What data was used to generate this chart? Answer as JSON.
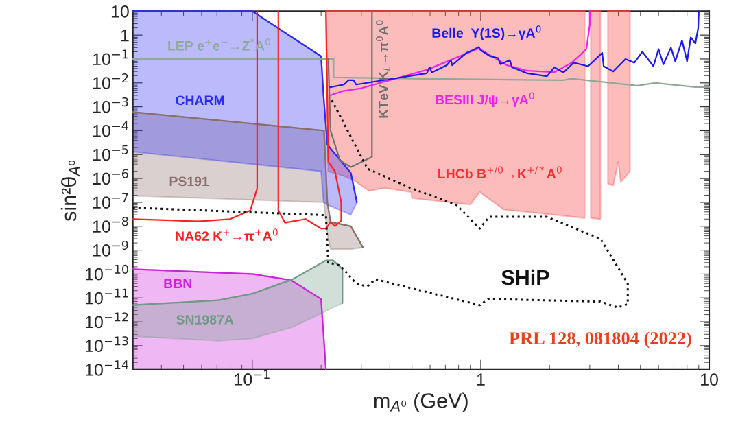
{
  "chart_data": {
    "type": "line",
    "log": "xy",
    "xlabel": "m$_{A⁰}$ (GeV)",
    "ylabel": "sin²θ$_{A⁰}$",
    "xlim": [
      0.03,
      10
    ],
    "ylim": [
      1e-14,
      10
    ],
    "xticks": [
      {
        "value": 0.1,
        "label": "10$^{−1}$"
      },
      1,
      10
    ],
    "yticks": [
      10,
      1,
      {
        "value": 0.1,
        "label": "10$^{−1}$"
      },
      {
        "value": 0.01,
        "label": "10$^{−2}$"
      },
      {
        "value": 0.001,
        "label": "10$^{−3}$"
      },
      {
        "value": 0.0001,
        "label": "10$^{−4}$"
      },
      {
        "value": 1e-05,
        "label": "10$^{−5}$"
      },
      {
        "value": 1e-06,
        "label": "10$^{−6}$"
      },
      {
        "value": 1e-07,
        "label": "10$^{−7}$"
      },
      {
        "value": 1e-08,
        "label": "10$^{−8}$"
      },
      {
        "value": 1e-09,
        "label": "10$^{−9}$"
      },
      {
        "value": 1e-10,
        "label": "10$^{−10}$"
      },
      {
        "value": 1e-11,
        "label": "10$^{−11}$"
      },
      {
        "value": 1e-12,
        "label": "10$^{−12}$"
      },
      {
        "value": 1e-13,
        "label": "10$^{−13}$"
      },
      {
        "value": 1e-14,
        "label": "10$^{−14}$"
      }
    ],
    "series": [
      {
        "name": "LHCb B$^{+/0}$→K$^{+/*}$A$^{0}$",
        "color": "#f53030",
        "x": [
          0.21,
          0.215,
          0.25,
          0.28,
          0.325,
          0.38,
          0.495,
          0.5,
          0.9,
          0.99,
          1.26,
          2.85
        ],
        "values": [
          10,
          10,
          10,
          10,
          10,
          10,
          10,
          10,
          10,
          10,
          10,
          10
        ],
        "upper": [
          10,
          10,
          10,
          10,
          10,
          10,
          10,
          10,
          10,
          10,
          10,
          10
        ],
        "lower": [
          10,
          2e-06,
          1.3e-06,
          8e-07,
          3e-07,
          4e-07,
          2.7e-07,
          1.5e-07,
          8e-08,
          2.7e-07,
          5e-08,
          2.2e-08
        ]
      },
      {
        "color": "#f53030",
        "x": [
          3.03,
          3.34
        ],
        "values": [
          10,
          10
        ],
        "upper": [
          10,
          10
        ],
        "lower": [
          2.2e-08,
          2e-08
        ]
      },
      {
        "color": "#f53030",
        "x": [
          3.6,
          3.8,
          4.0,
          4.1,
          4.5
        ],
        "values": [
          10,
          10,
          10,
          10,
          10
        ],
        "upper": [
          10,
          10,
          10,
          10,
          10
        ],
        "lower": [
          6e-07,
          5e-07,
          5e-06,
          7e-07,
          2e-06
        ]
      },
      {
        "name": "PS191",
        "color": "#8a6e6a",
        "x": [
          0.03,
          0.206,
          0.213,
          0.22,
          0.27,
          0.305
        ],
        "values": [
          0.0006,
          0.0001,
          1e-07,
          1.5e-08,
          1e-08,
          1.3e-09
        ],
        "upper": [
          0.0006,
          0.0001,
          1e-07,
          1.5e-08,
          1e-08,
          1.3e-09
        ],
        "lower": [
          1.9e-07,
          1e-07,
          5e-09,
          1.1e-09,
          1.1e-09,
          1.3e-09
        ]
      },
      {
        "name": "CHARM",
        "color": "#2a2af5",
        "x": [
          0.03,
          0.1,
          0.2,
          0.205,
          0.213,
          0.27,
          0.287
        ],
        "values": [
          10,
          10,
          0.13,
          0.003,
          2.6e-05,
          1.7e-06,
          1e-07
        ],
        "upper": [
          10,
          10,
          0.13,
          0.003,
          2.6e-05,
          1.7e-06,
          1e-07
        ],
        "lower": [
          1.3e-05,
          4e-06,
          2e-06,
          1e-07,
          8e-08,
          3e-08,
          1e-07
        ]
      },
      {
        "name": "BBN",
        "color": "#cc22dd",
        "x": [
          0.03,
          0.1,
          0.148,
          0.2,
          0.21
        ],
        "values": [
          1.6e-10,
          1e-10,
          5.5e-11,
          9e-12,
          1e-14
        ],
        "upper": [
          1.6e-10,
          1e-10,
          5.5e-11,
          9e-12,
          1e-14
        ],
        "lower": [
          1e-14,
          1e-14,
          1e-14,
          1e-14,
          1e-14
        ]
      },
      {
        "name": "SN1987A",
        "color": "#6f9a86",
        "x": [
          0.03,
          0.071,
          0.1,
          0.15,
          0.21,
          0.226,
          0.248,
          0.248
        ],
        "values": [
          5e-12,
          8e-12,
          1.5e-11,
          6e-11,
          3.7e-10,
          3.7e-10,
          1.6e-10,
          6e-12
        ],
        "upper": [
          5e-12,
          8e-12,
          1.5e-11,
          6e-11,
          3.7e-10,
          3.7e-10,
          1.6e-10,
          6e-12
        ],
        "lower": [
          2.5e-13,
          1.6e-13,
          2e-13,
          6e-13,
          2.8e-12,
          4e-12,
          6e-12,
          6e-12
        ]
      },
      {
        "name": "LEP e$^{+}$e$^{−}$→Z$^{*}$A$^{0}$",
        "color": "#8fa89a",
        "x": [
          0.03,
          0.227,
          0.227,
          0.5,
          1,
          2.3,
          2.5,
          4.85,
          5.8,
          8.7,
          10
        ],
        "values": [
          0.1,
          0.1,
          0.017,
          0.015,
          0.014,
          0.013,
          0.015,
          0.0076,
          0.01,
          0.0067,
          0.0067
        ]
      },
      {
        "name": "KTeV K$_{L}$→π$^{0}$A$^{0}$",
        "color": "#707070",
        "x": [
          0.215,
          0.22,
          0.242,
          0.27,
          0.334,
          0.334
        ],
        "values": [
          0.1,
          0.0001,
          5.6e-06,
          3e-06,
          8e-06,
          10
        ]
      },
      {
        "name": "NA62 K$^{+}$→π$^{+}$A$^{0}$",
        "color": "#ff2020",
        "x": [
          0.03,
          0.058,
          0.08,
          0.098,
          0.105,
          0.105
        ],
        "values": [
          2e-08,
          1.6e-08,
          2e-08,
          4.6e-08,
          3.8e-07,
          10
        ]
      },
      {
        "color": "#ff2020",
        "x": [
          0.13,
          0.13,
          0.139,
          0.171,
          0.2,
          0.21,
          0.22,
          0.23,
          0.245,
          0.245,
          0.23,
          0.215,
          0.21
        ],
        "values": [
          10,
          4.6e-08,
          1.4e-08,
          2e-08,
          8e-09,
          8e-09,
          1.5e-08,
          1e-08,
          1.7e-08,
          1e-07,
          2e-06,
          5e-06,
          10
        ]
      },
      {
        "name": "BESIII J/ψ→γA$^{0}$",
        "color": "#ee22ee",
        "x": [
          0.219,
          0.25,
          0.3,
          0.58,
          0.98,
          1.3,
          1.6,
          2.1,
          2.5,
          2.9,
          3.0,
          3.0
        ],
        "values": [
          0.003,
          0.0046,
          0.006,
          0.035,
          0.28,
          0.055,
          0.032,
          0.028,
          0.07,
          0.26,
          2.7,
          10
        ]
      },
      {
        "name": "Belle  Υ(1S)→γA$^{0}$",
        "color": "#1a1aee",
        "x": [
          0.219,
          0.252,
          0.264,
          0.277,
          0.285,
          0.58,
          0.597,
          0.61,
          0.71,
          0.74,
          0.75,
          0.865,
          0.92,
          0.98,
          1.0,
          1.1,
          1.19,
          1.22,
          1.34,
          1.37,
          1.6,
          1.95,
          2.1,
          2.3,
          2.55,
          2.95,
          3.4,
          3.45,
          3.8,
          4.3,
          4.7,
          5.1,
          5.7,
          6.0,
          6.3,
          6.8,
          7.1,
          7.6,
          8.0,
          8.3,
          8.7,
          8.95,
          9.0
        ],
        "values": [
          0.0066,
          0.0085,
          0.013,
          0.013,
          0.0085,
          0.025,
          0.045,
          0.027,
          0.055,
          0.09,
          0.055,
          0.18,
          0.23,
          0.32,
          0.23,
          0.13,
          0.11,
          0.06,
          0.09,
          0.045,
          0.025,
          0.019,
          0.045,
          0.027,
          0.07,
          0.05,
          0.18,
          0.05,
          0.03,
          0.1,
          0.07,
          0.2,
          0.05,
          0.26,
          0.06,
          0.3,
          0.08,
          0.6,
          0.08,
          0.8,
          0.45,
          2,
          10
        ]
      },
      {
        "name": "SHiP",
        "color": "#111111",
        "line_style": "dotted",
        "x": [
          0.03,
          0.21,
          0.215,
          0.242,
          0.285,
          0.318,
          0.346,
          0.99,
          1.08,
          3.34,
          3.97,
          4.4,
          4.4,
          3.34,
          1.94,
          1.09,
          0.99,
          0.78,
          0.5,
          0.32,
          0.277,
          0.252,
          0.219
        ],
        "values": [
          6e-08,
          2.9e-08,
          3e-10,
          2.3e-10,
          4e-11,
          3e-11,
          6e-11,
          5e-12,
          9e-12,
          7e-12,
          4e-12,
          5.5e-12,
          4e-11,
          3e-09,
          2.5e-08,
          2.5e-08,
          8e-09,
          8e-08,
          3.8e-07,
          2.5e-06,
          3.4e-05,
          0.0002,
          0.0026
        ]
      }
    ],
    "annotations": [
      "PRL 128, 081804 (2022)"
    ]
  }
}
